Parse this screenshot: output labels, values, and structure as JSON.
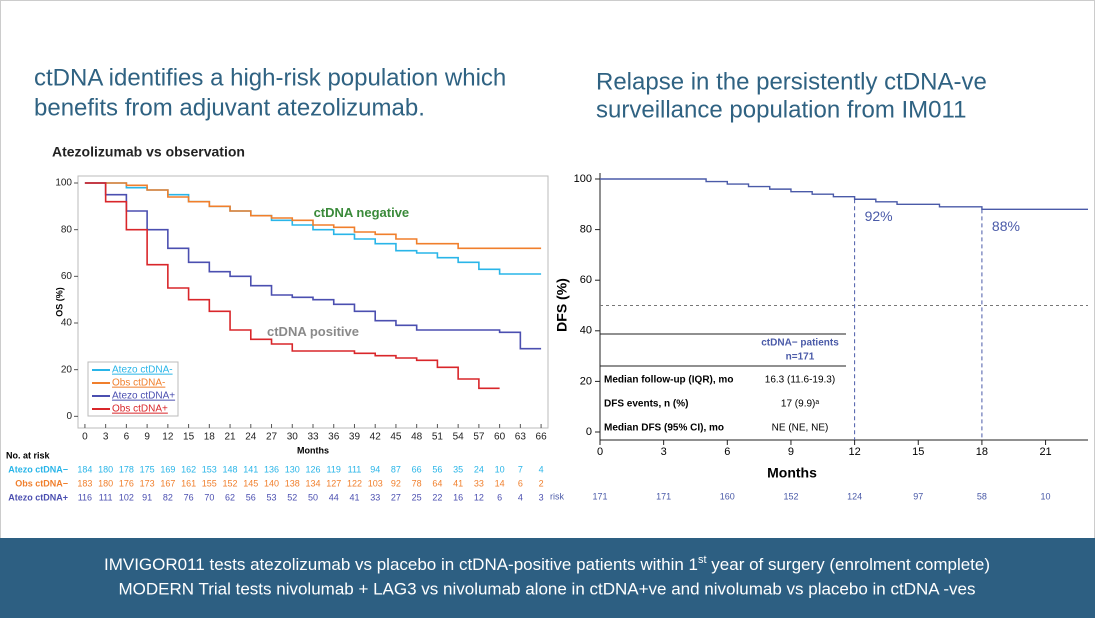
{
  "left_title": [
    "ctDNA identifies a high-risk population which",
    "benefits from adjuvant atezolizumab."
  ],
  "right_title": [
    "Relapse in the persistently ctDNA-ve",
    "surveillance population from IM011"
  ],
  "banner": {
    "line1_before": "IMVIGOR011 tests atezolizumab vs placebo in ctDNA-positive patients within 1",
    "line1_sup": "st",
    "line1_after": " year of surgery (enrolment complete)",
    "line2": "MODERN Trial tests nivolumab + LAG3 vs nivolumab alone in ctDNA+ve and nivolumab vs placebo in ctDNA -ves"
  },
  "chart_data": [
    {
      "type": "line",
      "step": true,
      "title": "Atezolizumab vs observation",
      "x_label": "Months",
      "y_label": "OS (%)",
      "x": [
        0,
        3,
        6,
        9,
        12,
        15,
        18,
        21,
        24,
        27,
        30,
        33,
        36,
        39,
        42,
        45,
        48,
        51,
        54,
        57,
        60,
        63,
        66
      ],
      "xlim": [
        -1,
        67
      ],
      "xticks": [
        0,
        3,
        6,
        9,
        12,
        15,
        18,
        21,
        24,
        27,
        30,
        33,
        36,
        39,
        42,
        45,
        48,
        51,
        54,
        57,
        60,
        63,
        66
      ],
      "ylim": [
        -5,
        103
      ],
      "yticks": [
        0,
        20,
        40,
        60,
        80,
        100
      ],
      "series": [
        {
          "name": "Atezo ctDNA-",
          "color": "#29b5e8",
          "values": [
            100,
            100,
            98,
            97,
            95,
            92,
            90,
            88,
            86,
            84,
            82,
            80,
            78,
            76,
            74,
            71,
            70,
            68,
            66,
            63,
            61,
            61,
            61
          ]
        },
        {
          "name": "Obs ctDNA-",
          "color": "#f07f2c",
          "values": [
            100,
            100,
            99,
            97,
            94,
            92,
            90,
            88,
            86,
            85,
            84,
            82,
            81,
            79,
            78,
            76,
            74,
            74,
            72,
            72,
            72,
            72,
            72
          ]
        },
        {
          "name": "Atezo ctDNA+",
          "color": "#4b4fb0",
          "values": [
            100,
            95,
            88,
            80,
            72,
            66,
            62,
            60,
            56,
            52,
            51,
            50,
            48,
            45,
            41,
            39,
            37,
            37,
            37,
            37,
            36,
            29,
            29
          ]
        },
        {
          "name": "Obs ctDNA+",
          "color": "#d9262a",
          "values": [
            100,
            92,
            80,
            65,
            55,
            50,
            45,
            37,
            33,
            31,
            28,
            28,
            28,
            27,
            26,
            25,
            24,
            21,
            16,
            12,
            12,
            null,
            null
          ]
        }
      ],
      "annotations": [
        {
          "text": "ctDNA negative",
          "x": 40,
          "y": 87,
          "color": "#3a8a3a"
        },
        {
          "text": "ctDNA positive",
          "x": 33,
          "y": 36,
          "color": "#8a8a8a"
        }
      ],
      "risk_table": {
        "label": "No. at risk",
        "rows": [
          {
            "name": "Atezo ctDNA−",
            "color": "#29b5e8",
            "values": [
              184,
              180,
              178,
              175,
              169,
              162,
              153,
              148,
              141,
              136,
              130,
              126,
              119,
              111,
              94,
              87,
              66,
              56,
              35,
              24,
              10,
              7,
              4
            ]
          },
          {
            "name": "Obs ctDNA−",
            "color": "#f07f2c",
            "values": [
              183,
              180,
              176,
              173,
              167,
              161,
              155,
              152,
              145,
              140,
              138,
              134,
              127,
              122,
              103,
              92,
              78,
              64,
              41,
              33,
              14,
              6,
              2
            ]
          },
          {
            "name": "Atezo ctDNA+",
            "color": "#4b4fb0",
            "values": [
              116,
              111,
              102,
              91,
              82,
              76,
              70,
              62,
              56,
              53,
              52,
              50,
              44,
              41,
              33,
              27,
              25,
              22,
              16,
              12,
              6,
              4,
              3
            ]
          }
        ]
      }
    },
    {
      "type": "line",
      "step": true,
      "x_label": "Months",
      "y_label": "DFS (%)",
      "x": [
        0,
        4,
        5,
        6,
        7,
        8,
        9,
        10,
        11,
        12,
        13,
        14,
        15,
        16,
        17,
        18,
        21,
        23
      ],
      "xlim": [
        0,
        23
      ],
      "xticks": [
        0,
        3,
        6,
        9,
        12,
        15,
        18,
        21
      ],
      "ylim": [
        0,
        100
      ],
      "yticks": [
        0,
        20,
        40,
        60,
        80,
        100
      ],
      "series": [
        {
          "name": "ctDNA− patients",
          "color": "#4a5aa8",
          "values": [
            100,
            100,
            99,
            98,
            97,
            96,
            95,
            94,
            93,
            92,
            91,
            90,
            90,
            89,
            89,
            88,
            88,
            88
          ]
        }
      ],
      "hline": 50,
      "annotations": [
        {
          "x": 12,
          "y": 92,
          "label": "92%"
        },
        {
          "x": 18,
          "y": 88,
          "label": "88%"
        }
      ],
      "table": {
        "header": [
          "ctDNA− patients",
          "n=171"
        ],
        "rows": [
          [
            "Median follow-up (IQR), mo",
            "16.3 (11.6-19.3)"
          ],
          [
            "DFS events, n (%)",
            "17 (9.9)ᵃ"
          ],
          [
            "Median DFS (95% CI), mo",
            "NE (NE, NE)"
          ]
        ]
      },
      "risk_table": {
        "label": "risk",
        "values": [
          171,
          171,
          160,
          152,
          124,
          97,
          58,
          10
        ]
      }
    }
  ]
}
